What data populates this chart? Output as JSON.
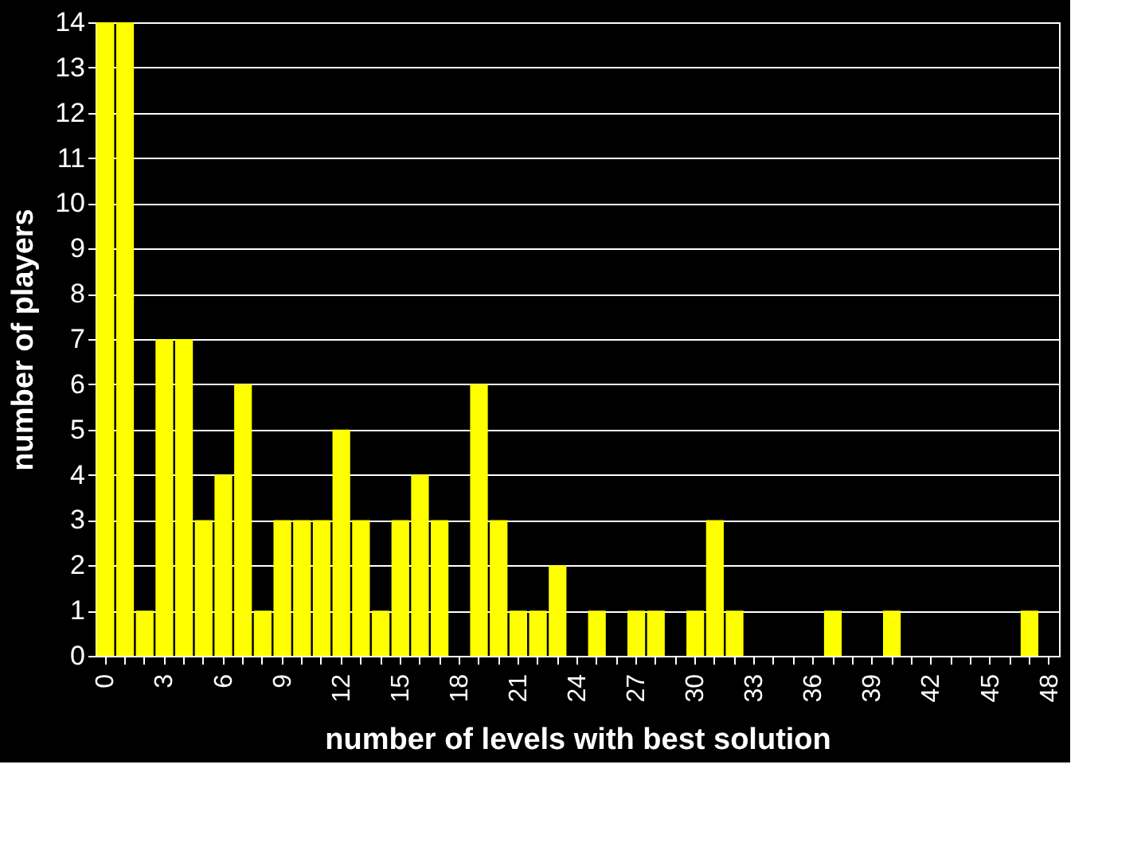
{
  "chart_data": {
    "type": "bar",
    "xlabel": "number of levels with best solution",
    "ylabel": "number of players",
    "categories": [
      "0",
      null,
      null,
      "3",
      null,
      null,
      "6",
      null,
      null,
      "9",
      null,
      null,
      "12",
      null,
      null,
      "15",
      null,
      null,
      "18",
      null,
      null,
      "21",
      null,
      null,
      "24",
      null,
      null,
      "27",
      null,
      null,
      "30",
      null,
      null,
      "33",
      null,
      null,
      "36",
      null,
      null,
      "39",
      null,
      null,
      "42",
      null,
      null,
      "45",
      null,
      null,
      "48"
    ],
    "values": [
      14,
      14,
      1,
      7,
      7,
      3,
      4,
      6,
      1,
      3,
      3,
      3,
      5,
      3,
      1,
      3,
      4,
      3,
      0,
      6,
      3,
      1,
      1,
      2,
      0,
      1,
      0,
      1,
      1,
      0,
      1,
      3,
      1,
      0,
      0,
      0,
      0,
      1,
      0,
      0,
      1,
      0,
      0,
      0,
      0,
      0,
      0,
      1,
      0
    ],
    "color": "#ffff00",
    "ylim": [
      0,
      14
    ],
    "yticks": [
      0,
      1,
      2,
      3,
      4,
      5,
      6,
      7,
      8,
      9,
      10,
      11,
      12,
      13,
      14
    ],
    "grid": "y"
  }
}
